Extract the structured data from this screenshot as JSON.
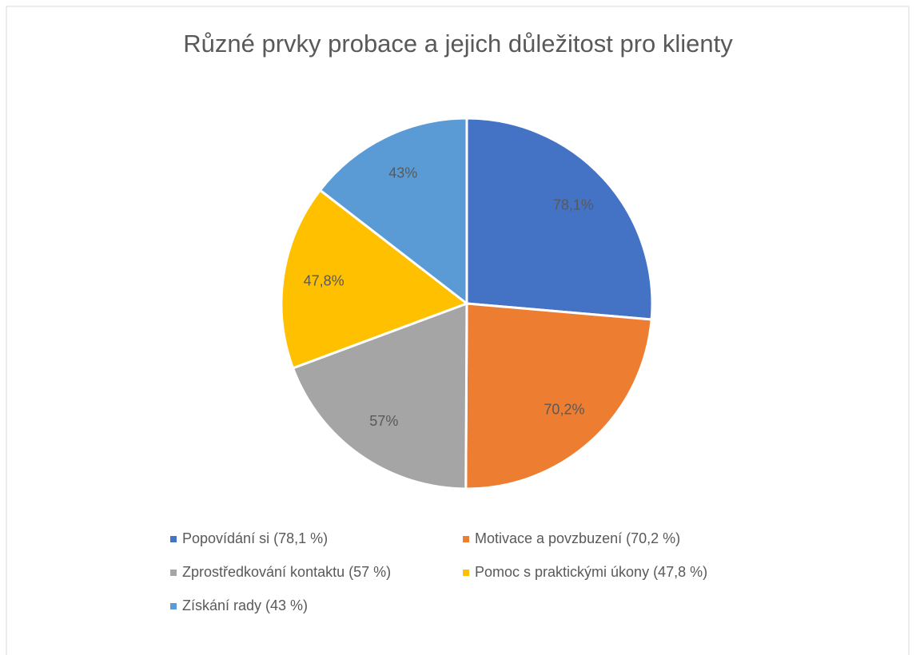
{
  "chart_data": {
    "type": "pie",
    "title": "Různé prvky probace a jejich důležitost pro klienty",
    "categories": [
      "Popovídání si (78,1 %)",
      "Motivace a povzbuzení (70,2 %)",
      "Zprostředkování kontaktu (57 %)",
      "Pomoc s praktickými úkony (47,8 %)",
      "Získání rady (43 %)"
    ],
    "values": [
      78.1,
      70.2,
      57,
      47.8,
      43
    ],
    "value_labels": [
      "78,1%",
      "70,2%",
      "57%",
      "47,8%",
      "43%"
    ],
    "colors": [
      "#4472c4",
      "#ed7d31",
      "#a5a5a5",
      "#ffc000",
      "#5b9bd5"
    ]
  }
}
